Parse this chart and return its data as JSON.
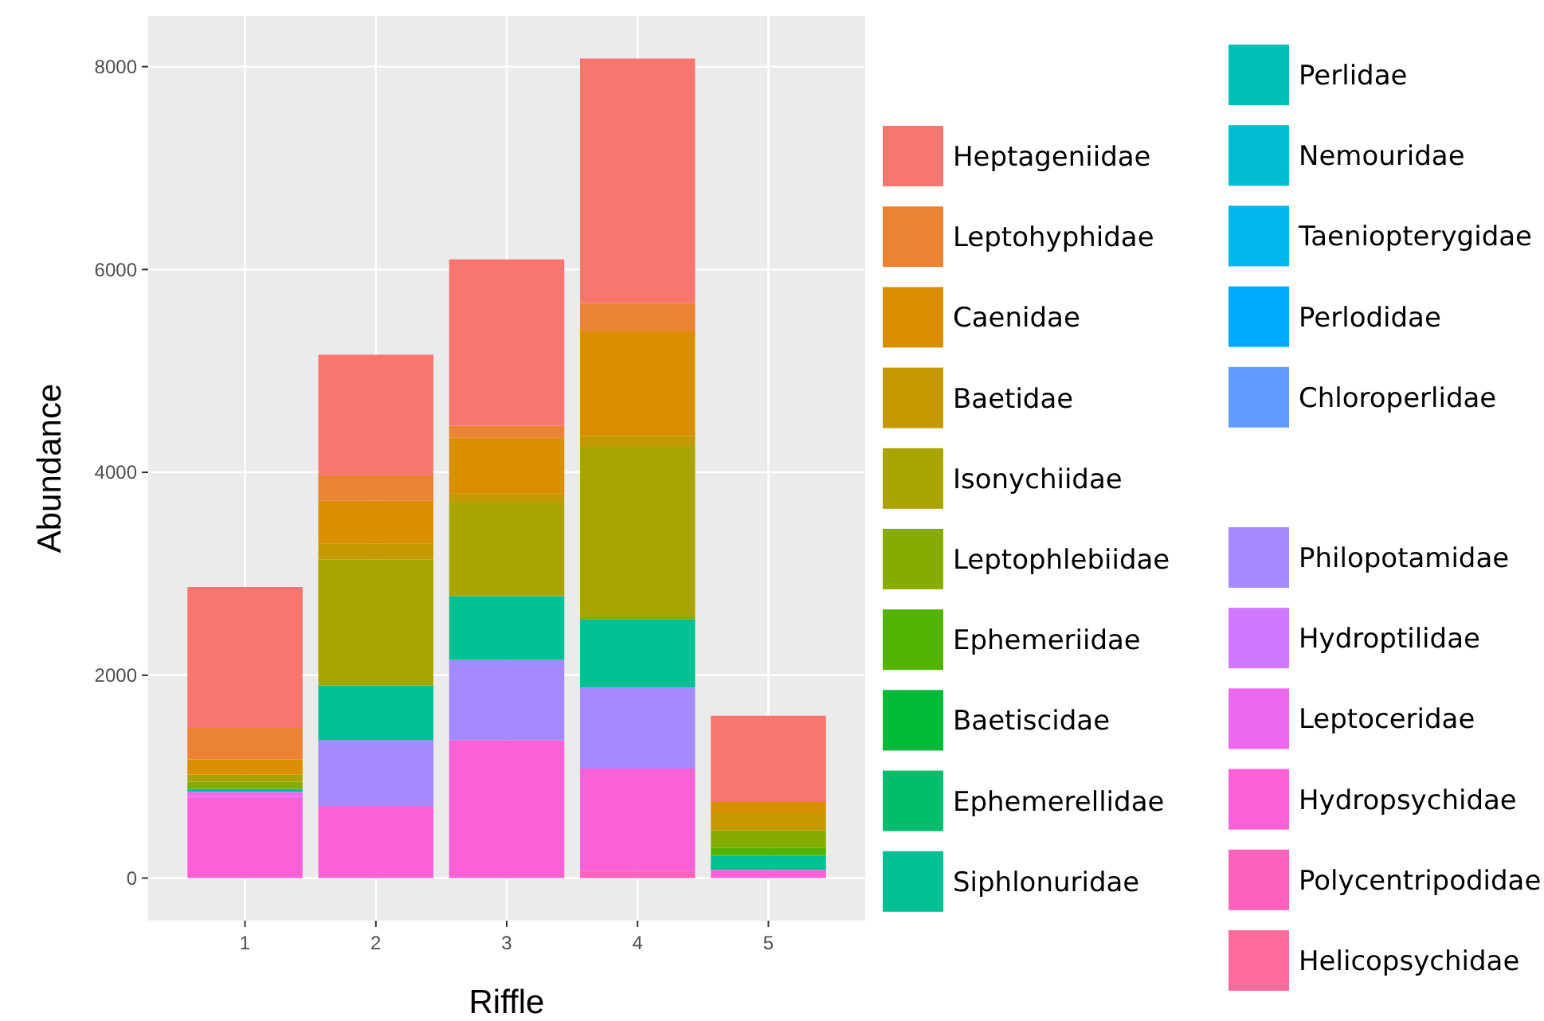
{
  "chart_data": {
    "type": "bar",
    "stacked": true,
    "xlabel": "Riffle",
    "ylabel": "Abundance",
    "categories": [
      "1",
      "2",
      "3",
      "4",
      "5"
    ],
    "ylim": [
      -420,
      8500
    ],
    "yticks": [
      0,
      2000,
      4000,
      6000,
      8000
    ],
    "grid": true,
    "legend": "right",
    "series": [
      {
        "name": "Helicopsychidae",
        "color": "#ff6c9c",
        "values": [
          0,
          0,
          0,
          0,
          0
        ]
      },
      {
        "name": "Polycentripodidae",
        "color": "#ff62bc",
        "values": [
          0,
          0,
          0,
          70,
          0
        ]
      },
      {
        "name": "Hydropsychidae",
        "color": "#fb61d7",
        "values": [
          800,
          710,
          1360,
          1010,
          80
        ]
      },
      {
        "name": "Leptoceridae",
        "color": "#ec69ef",
        "values": [
          50,
          0,
          0,
          0,
          0
        ]
      },
      {
        "name": "Hydroptilidae",
        "color": "#d078ff",
        "values": [
          0,
          0,
          0,
          0,
          0
        ]
      },
      {
        "name": "Philopotamidae",
        "color": "#a58aff",
        "values": [
          0,
          650,
          790,
          800,
          0
        ]
      },
      {
        "name": "Chloroperlidae",
        "color": "#619cff",
        "values": [
          0,
          0,
          0,
          0,
          0
        ]
      },
      {
        "name": "Perlodidae",
        "color": "#00abfd",
        "values": [
          0,
          0,
          0,
          0,
          0
        ]
      },
      {
        "name": "Taeniopterygidae",
        "color": "#00b6eb",
        "values": [
          0,
          0,
          0,
          0,
          0
        ]
      },
      {
        "name": "Nemouridae",
        "color": "#00bdd2",
        "values": [
          0,
          0,
          0,
          0,
          0
        ]
      },
      {
        "name": "Perlidae",
        "color": "#00c0b5",
        "values": [
          0,
          0,
          0,
          0,
          0
        ]
      },
      {
        "name": "Siphlonuridae",
        "color": "#00c094",
        "values": [
          30,
          540,
          630,
          670,
          140
        ]
      },
      {
        "name": "Ephemerellidae",
        "color": "#00be6c",
        "values": [
          0,
          0,
          0,
          0,
          0
        ]
      },
      {
        "name": "Baetiscidae",
        "color": "#00ba38",
        "values": [
          0,
          0,
          0,
          0,
          0
        ]
      },
      {
        "name": "Ephemeriidae",
        "color": "#53b400",
        "values": [
          0,
          0,
          0,
          0,
          80
        ]
      },
      {
        "name": "Leptophlebiidae",
        "color": "#86ac00",
        "values": [
          70,
          0,
          0,
          30,
          170
        ]
      },
      {
        "name": "Isonychiidae",
        "color": "#a9a400",
        "values": [
          70,
          1240,
          930,
          1680,
          0
        ]
      },
      {
        "name": "Baetidae",
        "color": "#c49a00",
        "values": [
          0,
          160,
          80,
          100,
          170
        ]
      },
      {
        "name": "Caenidae",
        "color": "#da8f00",
        "values": [
          150,
          420,
          550,
          1030,
          110
        ]
      },
      {
        "name": "Leptohyphidae",
        "color": "#eb8335",
        "values": [
          310,
          250,
          120,
          280,
          0
        ]
      },
      {
        "name": "Heptageniidae",
        "color": "#f8766d",
        "values": [
          1390,
          1190,
          1640,
          2410,
          850
        ]
      }
    ]
  }
}
